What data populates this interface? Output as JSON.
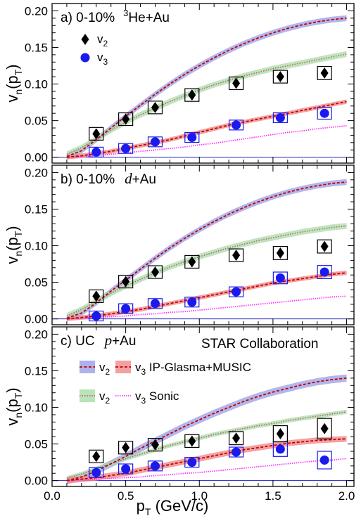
{
  "chart_data": {
    "type": "line",
    "xlabel_main": "p",
    "xlabel_sub": "T",
    "xlabel_unit": " (GeV/c)",
    "ylabel_main": "v",
    "ylabel_sub": "n",
    "ylabel_paren_open": "(p",
    "ylabel_paren_sub": "T",
    "ylabel_paren_close": ")",
    "xlim": [
      0.0,
      2.05
    ],
    "ylim": [
      -0.008,
      0.21
    ],
    "x_ticks": [
      0.0,
      0.5,
      1.0,
      1.5,
      2.0
    ],
    "x_tick_labels": [
      "0.0",
      "0.5",
      "1.0",
      "1.5",
      "2.0"
    ],
    "y_ticks": [
      0.0,
      0.05,
      0.1,
      0.15,
      0.2
    ],
    "y_tick_labels": [
      "0.00",
      "0.05",
      "0.10",
      "0.15",
      "0.20"
    ],
    "grid": false,
    "colors": {
      "v2_ipglasma_band": "#9a9ee6",
      "v2_ipglasma_line": "#c00000",
      "v3_ipglasma_band": "#f08a8a",
      "v3_ipglasma_line": "#c00000",
      "v2_sonic_band": "#a8dca8",
      "v2_sonic_line": "#c06070",
      "v3_sonic_line": "#ff33ff",
      "v2_marker": "#000000",
      "v3_marker": "#1a1aee",
      "baseline": "#2020c0"
    },
    "legend_top": {
      "v2_letter": "v",
      "v2_sub": "2",
      "v3_letter": "v",
      "v3_sub": "3"
    },
    "legend_bottom": {
      "v2_ip_letter": "v",
      "v2_ip_sub": "2",
      "v3_ip_letter": "v",
      "v3_ip_sub": "3",
      "v3_ip_model": " IP-Glasma+MUSIC",
      "v2_sonic_letter": "v",
      "v2_sonic_sub": "2",
      "v3_sonic_letter": "v",
      "v3_sonic_sub": "3",
      "v3_sonic_model": " Sonic"
    },
    "collaboration": "STAR Collaboration",
    "panels": [
      {
        "label_prefix": "a) 0-10%",
        "system_sup": "3",
        "system_main": "He+Au",
        "system_italic": false,
        "data_v2": [
          {
            "x": 0.3,
            "y": 0.032,
            "sys": 0.005
          },
          {
            "x": 0.5,
            "y": 0.052,
            "sys": 0.005
          },
          {
            "x": 0.7,
            "y": 0.068,
            "sys": 0.005
          },
          {
            "x": 0.95,
            "y": 0.085,
            "sys": 0.007
          },
          {
            "x": 1.25,
            "y": 0.101,
            "sys": 0.008
          },
          {
            "x": 1.55,
            "y": 0.11,
            "sys": 0.008
          },
          {
            "x": 1.85,
            "y": 0.115,
            "sys": 0.009
          }
        ],
        "data_v3": [
          {
            "x": 0.3,
            "y": 0.007,
            "sys": 0.003
          },
          {
            "x": 0.5,
            "y": 0.012,
            "sys": 0.003
          },
          {
            "x": 0.7,
            "y": 0.021,
            "sys": 0.004
          },
          {
            "x": 0.95,
            "y": 0.027,
            "sys": 0.004
          },
          {
            "x": 1.25,
            "y": 0.044,
            "sys": 0.004
          },
          {
            "x": 1.55,
            "y": 0.054,
            "sys": 0.005
          },
          {
            "x": 1.85,
            "y": 0.06,
            "sys": 0.008
          }
        ],
        "v2_ipglasma": {
          "x": [
            0.1,
            0.2,
            0.3,
            0.4,
            0.5,
            0.6,
            0.7,
            0.8,
            0.9,
            1.0,
            1.1,
            1.2,
            1.3,
            1.4,
            1.5,
            1.6,
            1.7,
            1.8,
            1.9,
            2.0
          ],
          "y": [
            0.001,
            0.009,
            0.024,
            0.04,
            0.056,
            0.071,
            0.086,
            0.1,
            0.113,
            0.125,
            0.136,
            0.146,
            0.155,
            0.163,
            0.17,
            0.176,
            0.181,
            0.185,
            0.188,
            0.19
          ],
          "band": 0.004
        },
        "v3_ipglasma": {
          "x": [
            0.1,
            0.2,
            0.3,
            0.4,
            0.5,
            0.6,
            0.7,
            0.8,
            0.9,
            1.0,
            1.1,
            1.2,
            1.3,
            1.4,
            1.5,
            1.6,
            1.7,
            1.8,
            1.9,
            2.0
          ],
          "y": [
            0.0,
            0.002,
            0.005,
            0.008,
            0.012,
            0.016,
            0.02,
            0.024,
            0.029,
            0.034,
            0.039,
            0.044,
            0.048,
            0.052,
            0.056,
            0.06,
            0.064,
            0.068,
            0.072,
            0.076
          ],
          "band": 0.003
        },
        "v2_sonic": {
          "x": [
            0.1,
            0.2,
            0.3,
            0.4,
            0.5,
            0.6,
            0.7,
            0.8,
            0.9,
            1.0,
            1.1,
            1.2,
            1.3,
            1.4,
            1.5,
            1.6,
            1.7,
            1.8,
            1.9,
            2.0
          ],
          "y": [
            0.004,
            0.013,
            0.025,
            0.037,
            0.048,
            0.058,
            0.067,
            0.076,
            0.084,
            0.092,
            0.099,
            0.105,
            0.111,
            0.116,
            0.121,
            0.125,
            0.129,
            0.133,
            0.137,
            0.141
          ],
          "band": 0.004
        },
        "v3_sonic": {
          "x": [
            0.1,
            0.2,
            0.3,
            0.4,
            0.5,
            0.6,
            0.7,
            0.8,
            0.9,
            1.0,
            1.1,
            1.2,
            1.3,
            1.4,
            1.5,
            1.6,
            1.7,
            1.8,
            1.9,
            2.0
          ],
          "y": [
            0.0,
            0.001,
            0.002,
            0.004,
            0.006,
            0.008,
            0.01,
            0.012,
            0.014,
            0.017,
            0.019,
            0.022,
            0.025,
            0.028,
            0.031,
            0.034,
            0.036,
            0.039,
            0.041,
            0.043
          ]
        }
      },
      {
        "label_prefix": "b) 0-10%",
        "system_sup": "",
        "system_main": "d",
        "system_suffix": "+Au",
        "system_italic": true,
        "data_v2": [
          {
            "x": 0.3,
            "y": 0.031,
            "sys": 0.005
          },
          {
            "x": 0.5,
            "y": 0.051,
            "sys": 0.005
          },
          {
            "x": 0.7,
            "y": 0.064,
            "sys": 0.005
          },
          {
            "x": 0.95,
            "y": 0.078,
            "sys": 0.007
          },
          {
            "x": 1.25,
            "y": 0.087,
            "sys": 0.008
          },
          {
            "x": 1.55,
            "y": 0.09,
            "sys": 0.009
          },
          {
            "x": 1.85,
            "y": 0.099,
            "sys": 0.009
          }
        ],
        "data_v3": [
          {
            "x": 0.3,
            "y": 0.004,
            "sys": 0.003
          },
          {
            "x": 0.5,
            "y": 0.014,
            "sys": 0.003
          },
          {
            "x": 0.7,
            "y": 0.021,
            "sys": 0.004
          },
          {
            "x": 0.95,
            "y": 0.023,
            "sys": 0.004
          },
          {
            "x": 1.25,
            "y": 0.037,
            "sys": 0.006
          },
          {
            "x": 1.55,
            "y": 0.056,
            "sys": 0.008
          },
          {
            "x": 1.85,
            "y": 0.064,
            "sys": 0.009
          }
        ],
        "v2_ipglasma": {
          "x": [
            0.1,
            0.2,
            0.3,
            0.4,
            0.5,
            0.6,
            0.7,
            0.8,
            0.9,
            1.0,
            1.1,
            1.2,
            1.3,
            1.4,
            1.5,
            1.6,
            1.7,
            1.8,
            1.9,
            2.0
          ],
          "y": [
            0.001,
            0.008,
            0.022,
            0.038,
            0.053,
            0.068,
            0.083,
            0.097,
            0.11,
            0.122,
            0.133,
            0.143,
            0.152,
            0.16,
            0.167,
            0.173,
            0.178,
            0.182,
            0.185,
            0.187
          ],
          "band": 0.004
        },
        "v3_ipglasma": {
          "x": [
            0.1,
            0.2,
            0.3,
            0.4,
            0.5,
            0.6,
            0.7,
            0.8,
            0.9,
            1.0,
            1.1,
            1.2,
            1.3,
            1.4,
            1.5,
            1.6,
            1.7,
            1.8,
            1.9,
            2.0
          ],
          "y": [
            0.0,
            0.002,
            0.004,
            0.007,
            0.01,
            0.013,
            0.017,
            0.021,
            0.025,
            0.029,
            0.033,
            0.037,
            0.041,
            0.045,
            0.049,
            0.052,
            0.055,
            0.058,
            0.061,
            0.063
          ],
          "band": 0.003
        },
        "v2_sonic": {
          "x": [
            0.1,
            0.2,
            0.3,
            0.4,
            0.5,
            0.6,
            0.7,
            0.8,
            0.9,
            1.0,
            1.1,
            1.2,
            1.3,
            1.4,
            1.5,
            1.6,
            1.7,
            1.8,
            1.9,
            2.0
          ],
          "y": [
            0.004,
            0.013,
            0.024,
            0.035,
            0.045,
            0.054,
            0.063,
            0.071,
            0.078,
            0.085,
            0.091,
            0.097,
            0.102,
            0.107,
            0.111,
            0.115,
            0.119,
            0.122,
            0.125,
            0.127
          ],
          "band": 0.004
        },
        "v3_sonic": {
          "x": [
            0.1,
            0.2,
            0.3,
            0.4,
            0.5,
            0.6,
            0.7,
            0.8,
            0.9,
            1.0,
            1.1,
            1.2,
            1.3,
            1.4,
            1.5,
            1.6,
            1.7,
            1.8,
            1.9,
            2.0
          ],
          "y": [
            0.0,
            0.001,
            0.002,
            0.003,
            0.004,
            0.006,
            0.007,
            0.009,
            0.01,
            0.012,
            0.014,
            0.016,
            0.018,
            0.02,
            0.022,
            0.024,
            0.026,
            0.028,
            0.03,
            0.031
          ]
        }
      },
      {
        "label_prefix": "c) UC",
        "system_sup": "",
        "system_main": "p",
        "system_suffix": "+Au",
        "system_italic": true,
        "data_v2": [
          {
            "x": 0.3,
            "y": 0.033,
            "sys": 0.008
          },
          {
            "x": 0.5,
            "y": 0.045,
            "sys": 0.008
          },
          {
            "x": 0.7,
            "y": 0.049,
            "sys": 0.006
          },
          {
            "x": 0.95,
            "y": 0.054,
            "sys": 0.007
          },
          {
            "x": 1.25,
            "y": 0.058,
            "sys": 0.009
          },
          {
            "x": 1.55,
            "y": 0.064,
            "sys": 0.011
          },
          {
            "x": 1.85,
            "y": 0.071,
            "sys": 0.014
          }
        ],
        "data_v3": [
          {
            "x": 0.3,
            "y": 0.011,
            "sys": 0.004
          },
          {
            "x": 0.5,
            "y": 0.016,
            "sys": 0.004
          },
          {
            "x": 0.7,
            "y": 0.02,
            "sys": 0.004
          },
          {
            "x": 0.95,
            "y": 0.025,
            "sys": 0.005
          },
          {
            "x": 1.25,
            "y": 0.039,
            "sys": 0.006
          },
          {
            "x": 1.55,
            "y": 0.043,
            "sys": 0.01
          },
          {
            "x": 1.85,
            "y": 0.028,
            "sys": 0.012
          }
        ],
        "v2_ipglasma": {
          "x": [
            0.1,
            0.2,
            0.3,
            0.4,
            0.5,
            0.6,
            0.7,
            0.8,
            0.9,
            1.0,
            1.1,
            1.2,
            1.3,
            1.4,
            1.5,
            1.6,
            1.7,
            1.8,
            1.9,
            2.0
          ],
          "y": [
            0.0,
            0.005,
            0.013,
            0.023,
            0.033,
            0.044,
            0.054,
            0.064,
            0.074,
            0.083,
            0.092,
            0.1,
            0.108,
            0.115,
            0.121,
            0.126,
            0.131,
            0.135,
            0.138,
            0.14
          ],
          "band": 0.005
        },
        "v3_ipglasma": {
          "x": [
            0.1,
            0.2,
            0.3,
            0.4,
            0.5,
            0.6,
            0.7,
            0.8,
            0.9,
            1.0,
            1.1,
            1.2,
            1.3,
            1.4,
            1.5,
            1.6,
            1.7,
            1.8,
            1.9,
            2.0
          ],
          "y": [
            0.0,
            0.002,
            0.004,
            0.007,
            0.01,
            0.014,
            0.018,
            0.022,
            0.026,
            0.03,
            0.034,
            0.038,
            0.042,
            0.045,
            0.048,
            0.051,
            0.053,
            0.055,
            0.056,
            0.057
          ],
          "band": 0.004
        },
        "v2_sonic": {
          "x": [
            0.1,
            0.2,
            0.3,
            0.4,
            0.5,
            0.6,
            0.7,
            0.8,
            0.9,
            1.0,
            1.1,
            1.2,
            1.3,
            1.4,
            1.5,
            1.6,
            1.7,
            1.8,
            1.9,
            2.0
          ],
          "y": [
            0.003,
            0.009,
            0.016,
            0.023,
            0.03,
            0.036,
            0.042,
            0.048,
            0.053,
            0.058,
            0.063,
            0.067,
            0.071,
            0.075,
            0.078,
            0.082,
            0.085,
            0.088,
            0.091,
            0.094
          ],
          "band": 0.003
        },
        "v3_sonic": {
          "x": [
            0.1,
            0.2,
            0.3,
            0.4,
            0.5,
            0.6,
            0.7,
            0.8,
            0.9,
            1.0,
            1.1,
            1.2,
            1.3,
            1.4,
            1.5,
            1.6,
            1.7,
            1.8,
            1.9,
            2.0
          ],
          "y": [
            0.0,
            0.001,
            0.002,
            0.003,
            0.004,
            0.005,
            0.007,
            0.008,
            0.01,
            0.011,
            0.013,
            0.015,
            0.017,
            0.019,
            0.021,
            0.023,
            0.025,
            0.027,
            0.028,
            0.03
          ]
        }
      }
    ]
  }
}
